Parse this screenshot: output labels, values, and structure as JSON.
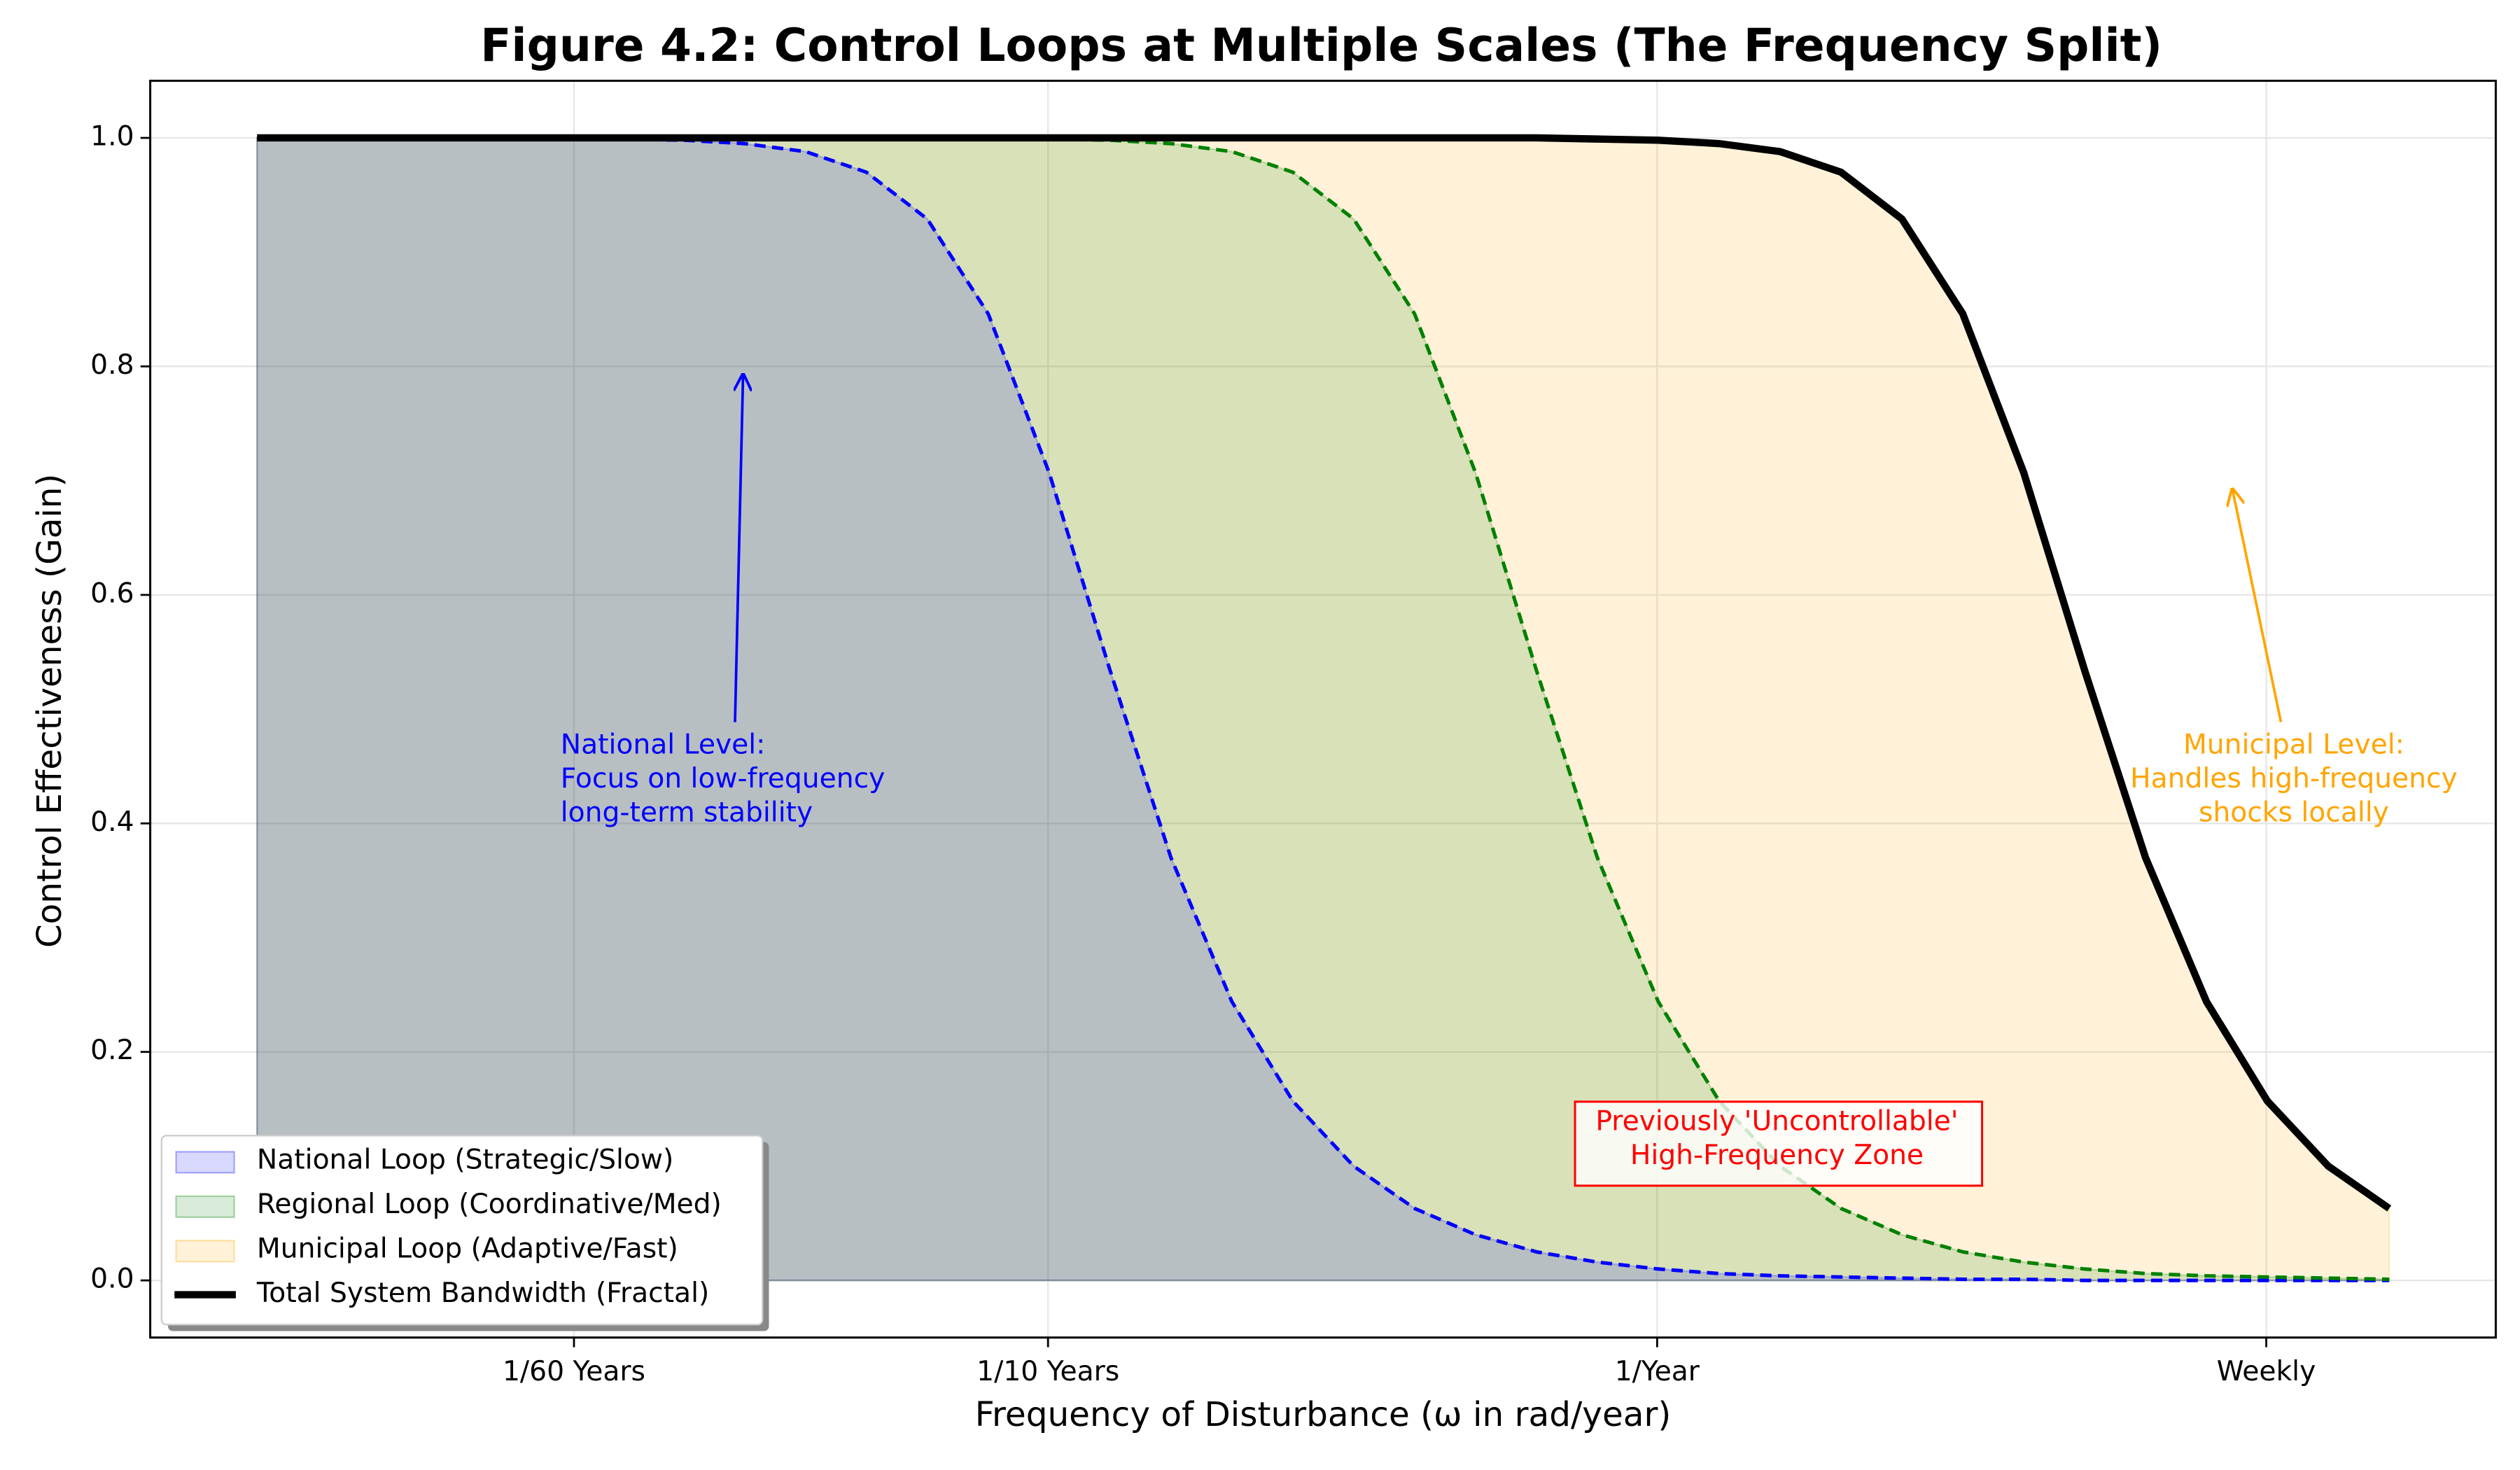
{
  "chart_data": {
    "type": "area-line",
    "title": "Figure 4.2: Control Loops at Multiple Scales (The Frequency Split)",
    "x_label": "Frequency of Disturbance (ω in rad/year)",
    "y_label": "Control Effectiveness (Gain)",
    "x_scale": "log",
    "xlim": [
      0.0211,
      149.6
    ],
    "ylim": [
      -0.05,
      1.05
    ],
    "xticks": [
      {
        "value": 0.1047,
        "label": "1/60 Years"
      },
      {
        "value": 0.6283,
        "label": "1/10 Years"
      },
      {
        "value": 6.283,
        "label": "1/Year"
      },
      {
        "value": 62.83,
        "label": "Weekly"
      }
    ],
    "yticks": [
      {
        "value": 0,
        "label": "0.0"
      },
      0.2,
      0.4,
      0.6,
      0.8,
      {
        "value": 1,
        "label": "1.0"
      }
    ],
    "grid": true,
    "legend": "lower left",
    "x": [
      0.0316,
      0.0398,
      0.0501,
      0.0631,
      0.0794,
      0.1,
      0.1259,
      0.1585,
      0.1995,
      0.2512,
      0.3162,
      0.3981,
      0.5012,
      0.631,
      0.7943,
      1,
      1.259,
      1.585,
      1.995,
      2.512,
      3.162,
      3.981,
      5.012,
      6.31,
      7.943,
      10,
      12.59,
      15.85,
      19.95,
      25.12,
      31.62,
      39.81,
      50.12,
      63.1,
      79.43,
      100
    ],
    "series": [
      {
        "name": "National Loop (Strategic/Slow)",
        "color": "blue",
        "fill": true,
        "line": "dashed",
        "values": [
          1.0,
          1.0,
          1.0,
          1.0,
          1.0,
          1.0,
          0.999,
          0.998,
          0.995,
          0.988,
          0.97,
          0.929,
          0.846,
          0.707,
          0.534,
          0.37,
          0.244,
          0.157,
          0.1,
          0.063,
          0.04,
          0.025,
          0.016,
          0.01,
          0.006,
          0.004,
          0.003,
          0.002,
          0.001,
          0.001,
          0.0,
          0.0,
          0.0,
          0.0,
          0.0,
          0.0
        ]
      },
      {
        "name": "Regional Loop (Coordinative/Med)",
        "color": "green",
        "fill": true,
        "line": "dashed",
        "values": [
          1.0,
          1.0,
          1.0,
          1.0,
          1.0,
          1.0,
          1.0,
          1.0,
          1.0,
          1.0,
          1.0,
          1.0,
          1.0,
          0.999,
          0.998,
          0.995,
          0.988,
          0.97,
          0.929,
          0.846,
          0.707,
          0.534,
          0.37,
          0.244,
          0.157,
          0.1,
          0.063,
          0.04,
          0.025,
          0.016,
          0.01,
          0.006,
          0.004,
          0.003,
          0.002,
          0.001
        ]
      },
      {
        "name": "Municipal Loop (Adaptive/Fast)",
        "color": "orange",
        "fill": true,
        "line": null,
        "values": [
          1.0,
          1.0,
          1.0,
          1.0,
          1.0,
          1.0,
          1.0,
          1.0,
          1.0,
          1.0,
          1.0,
          1.0,
          1.0,
          1.0,
          1.0,
          1.0,
          1.0,
          1.0,
          1.0,
          1.0,
          1.0,
          1.0,
          0.999,
          0.998,
          0.995,
          0.988,
          0.97,
          0.929,
          0.846,
          0.707,
          0.534,
          0.37,
          0.244,
          0.157,
          0.1,
          0.063
        ]
      },
      {
        "name": "Total System Bandwidth (Fractal)",
        "color": "black",
        "fill": false,
        "line": "solid",
        "values": [
          1.0,
          1.0,
          1.0,
          1.0,
          1.0,
          1.0,
          1.0,
          1.0,
          1.0,
          1.0,
          1.0,
          1.0,
          1.0,
          1.0,
          1.0,
          1.0,
          1.0,
          1.0,
          1.0,
          1.0,
          1.0,
          1.0,
          0.999,
          0.998,
          0.995,
          0.988,
          0.97,
          0.929,
          0.846,
          0.707,
          0.534,
          0.37,
          0.244,
          0.157,
          0.1,
          0.063
        ]
      }
    ],
    "annotations": [
      {
        "lines": [
          "National Level:",
          "Focus on low-frequency",
          "long-term stability"
        ],
        "color": "blue"
      },
      {
        "lines": [
          "Municipal Level:",
          "Handles high-frequency",
          "shocks locally"
        ],
        "color": "orange"
      },
      {
        "lines": [
          "Previously 'Uncontrollable'",
          "High-Frequency Zone"
        ],
        "color": "red"
      }
    ]
  }
}
